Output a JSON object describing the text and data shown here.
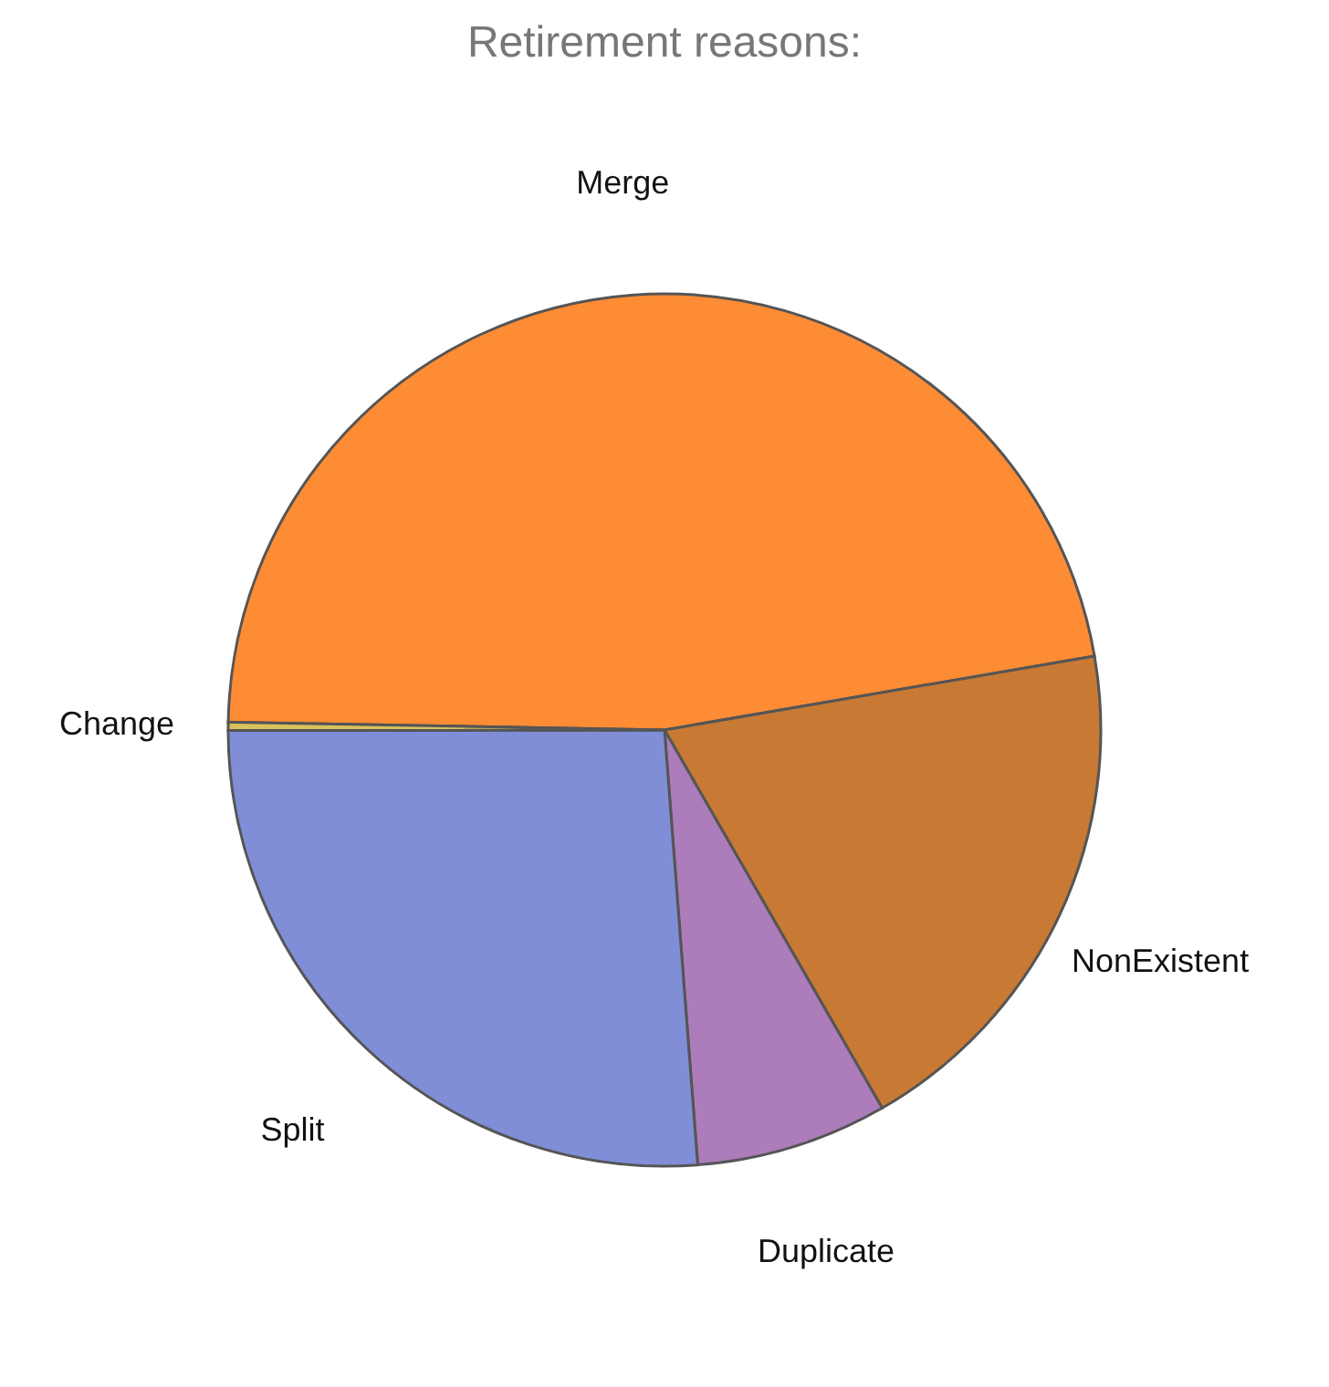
{
  "chart_data": {
    "type": "pie",
    "title": "Retirement reasons:",
    "categories": [
      "Merge",
      "NonExistent",
      "Duplicate",
      "Split",
      "Change"
    ],
    "values": [
      47.0,
      19.4,
      7.1,
      26.2,
      0.3
    ],
    "colors": [
      "#fd8c34",
      "#c87a34",
      "#ad7cba",
      "#7f8ed6",
      "#d9c25a"
    ],
    "legend": false
  }
}
